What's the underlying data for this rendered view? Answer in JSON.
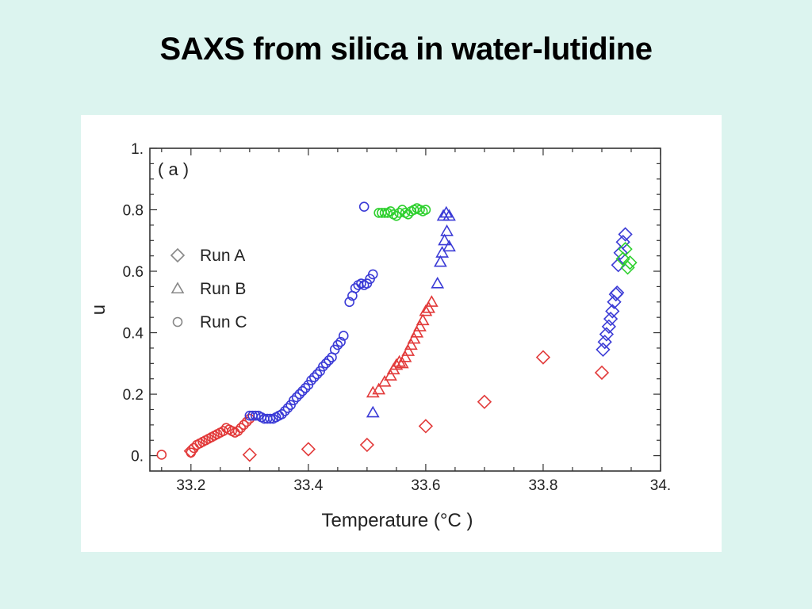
{
  "slide": {
    "title": "SAXS from silica in water-lutidine"
  },
  "colors": {
    "background": "#dcf4ef",
    "panel": "#ffffff",
    "red": "#e23a3a",
    "blue": "#3b3bd6",
    "green": "#2fd02f",
    "legend_gray": "#888888"
  },
  "chart_data": {
    "type": "scatter",
    "panel_label": "( a )",
    "xlabel": "Temperature (°C )",
    "ylabel": "u",
    "xlim": [
      33.13,
      34.0
    ],
    "ylim": [
      -0.05,
      1.0
    ],
    "xticks": [
      33.2,
      33.4,
      33.6,
      33.8,
      34.0
    ],
    "xtick_labels": [
      "33.2",
      "33.4",
      "33.6",
      "33.8",
      "34."
    ],
    "yticks": [
      0.0,
      0.2,
      0.4,
      0.6,
      0.8,
      1.0
    ],
    "ytick_labels": [
      "0.",
      "0.2",
      "0.4",
      "0.6",
      "0.8",
      "1."
    ],
    "legend": {
      "position": "left",
      "entries": [
        {
          "marker": "diamond",
          "label": "Run A"
        },
        {
          "marker": "triangle",
          "label": "Run B"
        },
        {
          "marker": "circle",
          "label": "Run C"
        }
      ]
    },
    "series": [
      {
        "name": "Run A",
        "marker": "diamond",
        "color": "red",
        "points": [
          [
            33.2,
            0.015
          ],
          [
            33.3,
            0.003
          ],
          [
            33.4,
            0.021
          ],
          [
            33.5,
            0.035
          ],
          [
            33.6,
            0.096
          ],
          [
            33.7,
            0.175
          ],
          [
            33.8,
            0.32
          ],
          [
            33.9,
            0.27
          ]
        ]
      },
      {
        "name": "Run A",
        "marker": "diamond",
        "color": "blue",
        "points": [
          [
            33.902,
            0.345
          ],
          [
            33.905,
            0.37
          ],
          [
            33.908,
            0.395
          ],
          [
            33.912,
            0.42
          ],
          [
            33.915,
            0.445
          ],
          [
            33.918,
            0.47
          ],
          [
            33.921,
            0.5
          ],
          [
            33.924,
            0.525
          ],
          [
            33.926,
            0.53
          ],
          [
            33.928,
            0.62
          ],
          [
            33.932,
            0.66
          ],
          [
            33.936,
            0.695
          ],
          [
            33.94,
            0.72
          ]
        ]
      },
      {
        "name": "Run A",
        "marker": "diamond",
        "color": "green",
        "points": [
          [
            33.936,
            0.64
          ],
          [
            33.94,
            0.672
          ],
          [
            33.944,
            0.612
          ],
          [
            33.948,
            0.628
          ]
        ]
      },
      {
        "name": "Run B",
        "marker": "triangle",
        "color": "red",
        "points": [
          [
            33.51,
            0.205
          ],
          [
            33.52,
            0.215
          ],
          [
            33.53,
            0.24
          ],
          [
            33.54,
            0.26
          ],
          [
            33.545,
            0.28
          ],
          [
            33.55,
            0.295
          ],
          [
            33.555,
            0.305
          ],
          [
            33.56,
            0.3
          ],
          [
            33.565,
            0.32
          ],
          [
            33.57,
            0.34
          ],
          [
            33.575,
            0.36
          ],
          [
            33.58,
            0.38
          ],
          [
            33.585,
            0.4
          ],
          [
            33.59,
            0.42
          ],
          [
            33.595,
            0.44
          ],
          [
            33.6,
            0.47
          ],
          [
            33.605,
            0.48
          ],
          [
            33.61,
            0.5
          ]
        ]
      },
      {
        "name": "Run B",
        "marker": "triangle",
        "color": "blue",
        "points": [
          [
            33.51,
            0.14
          ],
          [
            33.62,
            0.56
          ],
          [
            33.625,
            0.63
          ],
          [
            33.628,
            0.66
          ],
          [
            33.632,
            0.7
          ],
          [
            33.636,
            0.73
          ],
          [
            33.64,
            0.68
          ],
          [
            33.63,
            0.78
          ],
          [
            33.635,
            0.79
          ],
          [
            33.64,
            0.78
          ]
        ]
      },
      {
        "name": "Run C",
        "marker": "circle",
        "color": "red",
        "points": [
          [
            33.15,
            0.003
          ],
          [
            33.2,
            0.01
          ],
          [
            33.205,
            0.025
          ],
          [
            33.21,
            0.035
          ],
          [
            33.215,
            0.04
          ],
          [
            33.22,
            0.045
          ],
          [
            33.225,
            0.05
          ],
          [
            33.23,
            0.055
          ],
          [
            33.235,
            0.06
          ],
          [
            33.24,
            0.065
          ],
          [
            33.245,
            0.07
          ],
          [
            33.25,
            0.075
          ],
          [
            33.255,
            0.08
          ],
          [
            33.26,
            0.09
          ],
          [
            33.265,
            0.085
          ],
          [
            33.27,
            0.08
          ],
          [
            33.275,
            0.075
          ],
          [
            33.28,
            0.08
          ],
          [
            33.285,
            0.09
          ],
          [
            33.29,
            0.1
          ],
          [
            33.295,
            0.11
          ],
          [
            33.3,
            0.12
          ]
        ]
      },
      {
        "name": "Run C",
        "marker": "circle",
        "color": "blue",
        "points": [
          [
            33.3,
            0.13
          ],
          [
            33.305,
            0.13
          ],
          [
            33.31,
            0.13
          ],
          [
            33.315,
            0.13
          ],
          [
            33.32,
            0.125
          ],
          [
            33.325,
            0.12
          ],
          [
            33.33,
            0.12
          ],
          [
            33.335,
            0.12
          ],
          [
            33.34,
            0.12
          ],
          [
            33.345,
            0.125
          ],
          [
            33.35,
            0.13
          ],
          [
            33.355,
            0.135
          ],
          [
            33.36,
            0.145
          ],
          [
            33.365,
            0.155
          ],
          [
            33.37,
            0.165
          ],
          [
            33.375,
            0.18
          ],
          [
            33.38,
            0.19
          ],
          [
            33.385,
            0.2
          ],
          [
            33.39,
            0.21
          ],
          [
            33.395,
            0.22
          ],
          [
            33.4,
            0.23
          ],
          [
            33.405,
            0.245
          ],
          [
            33.41,
            0.255
          ],
          [
            33.415,
            0.265
          ],
          [
            33.42,
            0.275
          ],
          [
            33.425,
            0.29
          ],
          [
            33.43,
            0.3
          ],
          [
            33.435,
            0.31
          ],
          [
            33.44,
            0.32
          ],
          [
            33.445,
            0.345
          ],
          [
            33.45,
            0.36
          ],
          [
            33.455,
            0.37
          ],
          [
            33.46,
            0.39
          ],
          [
            33.47,
            0.5
          ],
          [
            33.475,
            0.52
          ],
          [
            33.48,
            0.545
          ],
          [
            33.485,
            0.555
          ],
          [
            33.49,
            0.56
          ],
          [
            33.495,
            0.555
          ],
          [
            33.5,
            0.56
          ],
          [
            33.505,
            0.575
          ],
          [
            33.51,
            0.59
          ],
          [
            33.495,
            0.81
          ]
        ]
      },
      {
        "name": "Run C",
        "marker": "circle",
        "color": "green",
        "points": [
          [
            33.52,
            0.79
          ],
          [
            33.525,
            0.79
          ],
          [
            33.53,
            0.79
          ],
          [
            33.535,
            0.79
          ],
          [
            33.54,
            0.795
          ],
          [
            33.545,
            0.785
          ],
          [
            33.55,
            0.78
          ],
          [
            33.555,
            0.79
          ],
          [
            33.56,
            0.8
          ],
          [
            33.565,
            0.79
          ],
          [
            33.57,
            0.785
          ],
          [
            33.575,
            0.795
          ],
          [
            33.58,
            0.8
          ],
          [
            33.585,
            0.805
          ],
          [
            33.59,
            0.8
          ],
          [
            33.595,
            0.795
          ],
          [
            33.6,
            0.8
          ]
        ]
      }
    ]
  }
}
